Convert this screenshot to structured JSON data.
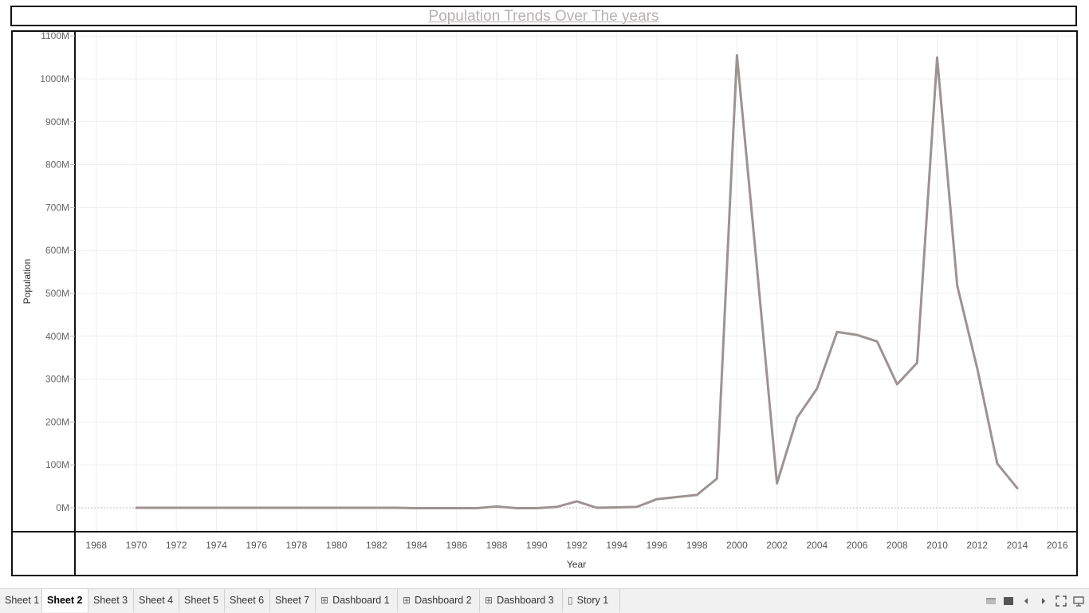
{
  "title": "Population Trends Over The years",
  "chart_data": {
    "type": "line",
    "xlabel": "Year",
    "ylabel": "Population",
    "xlim": [
      1967,
      2017
    ],
    "ylim": [
      0,
      1100
    ],
    "x_ticks": [
      1968,
      1970,
      1972,
      1974,
      1976,
      1978,
      1980,
      1982,
      1984,
      1986,
      1988,
      1990,
      1992,
      1994,
      1996,
      1998,
      2000,
      2002,
      2004,
      2006,
      2008,
      2010,
      2012,
      2014,
      2016
    ],
    "y_ticks": [
      0,
      100,
      200,
      300,
      400,
      500,
      600,
      700,
      800,
      900,
      1000,
      1100
    ],
    "y_tick_labels": [
      "0M",
      "100M",
      "200M",
      "300M",
      "400M",
      "500M",
      "600M",
      "700M",
      "800M",
      "900M",
      "1000M",
      "1100M"
    ],
    "line_color": "#9c9392",
    "grid": true,
    "series": [
      {
        "x": [
          1970,
          1971,
          1972,
          1973,
          1974,
          1975,
          1976,
          1977,
          1978,
          1979,
          1980,
          1981,
          1982,
          1983,
          1984,
          1985,
          1986,
          1987,
          1988,
          1989,
          1990,
          1991,
          1992,
          1993,
          1994,
          1995,
          1996,
          1997,
          1998,
          1999,
          2000,
          2001,
          2002,
          2003,
          2004,
          2005,
          2006,
          2007,
          2008,
          2009,
          2010,
          2011,
          2012,
          2013,
          2014
        ],
        "y": [
          0,
          0,
          0,
          0,
          0,
          0,
          0,
          0,
          0,
          0,
          0,
          0,
          0,
          0,
          -1,
          -1,
          -1,
          -1,
          3,
          -1,
          -1,
          2,
          15,
          0,
          1,
          2,
          20,
          25,
          30,
          68,
          1055,
          560,
          57,
          210,
          278,
          410,
          403,
          388,
          288,
          338,
          1050,
          518,
          325,
          103,
          46
        ]
      }
    ]
  },
  "tabs": [
    {
      "label": "Sheet 1"
    },
    {
      "label": "Sheet 2"
    },
    {
      "label": "Sheet 3"
    },
    {
      "label": "Sheet 4"
    },
    {
      "label": "Sheet 5"
    },
    {
      "label": "Sheet 6"
    },
    {
      "label": "Sheet 7"
    },
    {
      "label": "Dashboard 1",
      "icon": "dashboard-icon"
    },
    {
      "label": "Dashboard 2",
      "icon": "dashboard-icon"
    },
    {
      "label": "Dashboard 3",
      "icon": "dashboard-icon"
    },
    {
      "label": "Story 1",
      "icon": "story-icon"
    }
  ],
  "active_tab": "Sheet 2",
  "controls": [
    "film-strip-icon",
    "single-sheet-icon",
    "previous-icon",
    "next-icon",
    "fullscreen-icon",
    "presentation-icon"
  ]
}
